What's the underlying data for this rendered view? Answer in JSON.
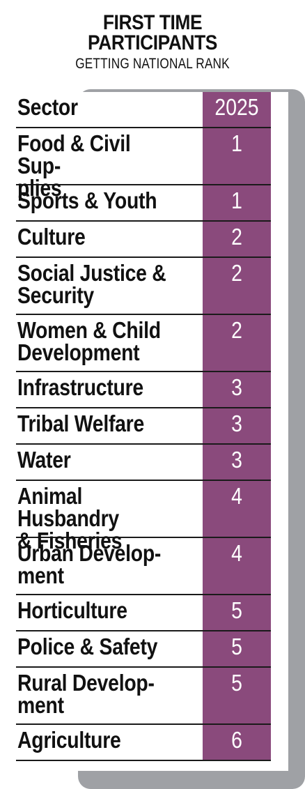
{
  "title": "FIRST TIME\nPARTICIPANTS",
  "subtitle": "GETTING NATIONAL RANK",
  "chart_data": {
    "type": "table",
    "title": "FIRST TIME PARTICIPANTS",
    "subtitle": "GETTING NATIONAL RANK",
    "columns": [
      "Sector",
      "2025"
    ],
    "rows": [
      {
        "sector": "Food & Civil Sup-\nplies",
        "rank": "1"
      },
      {
        "sector": "Sports & Youth",
        "rank": "1"
      },
      {
        "sector": "Culture",
        "rank": "2"
      },
      {
        "sector": "Social Justice &\nSecurity",
        "rank": "2"
      },
      {
        "sector": "Women & Child\nDevelopment",
        "rank": "2"
      },
      {
        "sector": "Infrastructure",
        "rank": "3"
      },
      {
        "sector": "Tribal Welfare",
        "rank": "3"
      },
      {
        "sector": "Water",
        "rank": "3"
      },
      {
        "sector": "Animal Husbandry\n& Fisheries",
        "rank": "4"
      },
      {
        "sector": "Urban Develop-\nment",
        "rank": "4"
      },
      {
        "sector": "Horticulture",
        "rank": "5"
      },
      {
        "sector": "Police & Safety",
        "rank": "5"
      },
      {
        "sector": "Rural Develop-\nment",
        "rank": "5"
      },
      {
        "sector": "Agriculture",
        "rank": "6"
      }
    ],
    "colors": {
      "value_column": "#8a4a7c",
      "shadow": "#9fa1a5"
    }
  }
}
